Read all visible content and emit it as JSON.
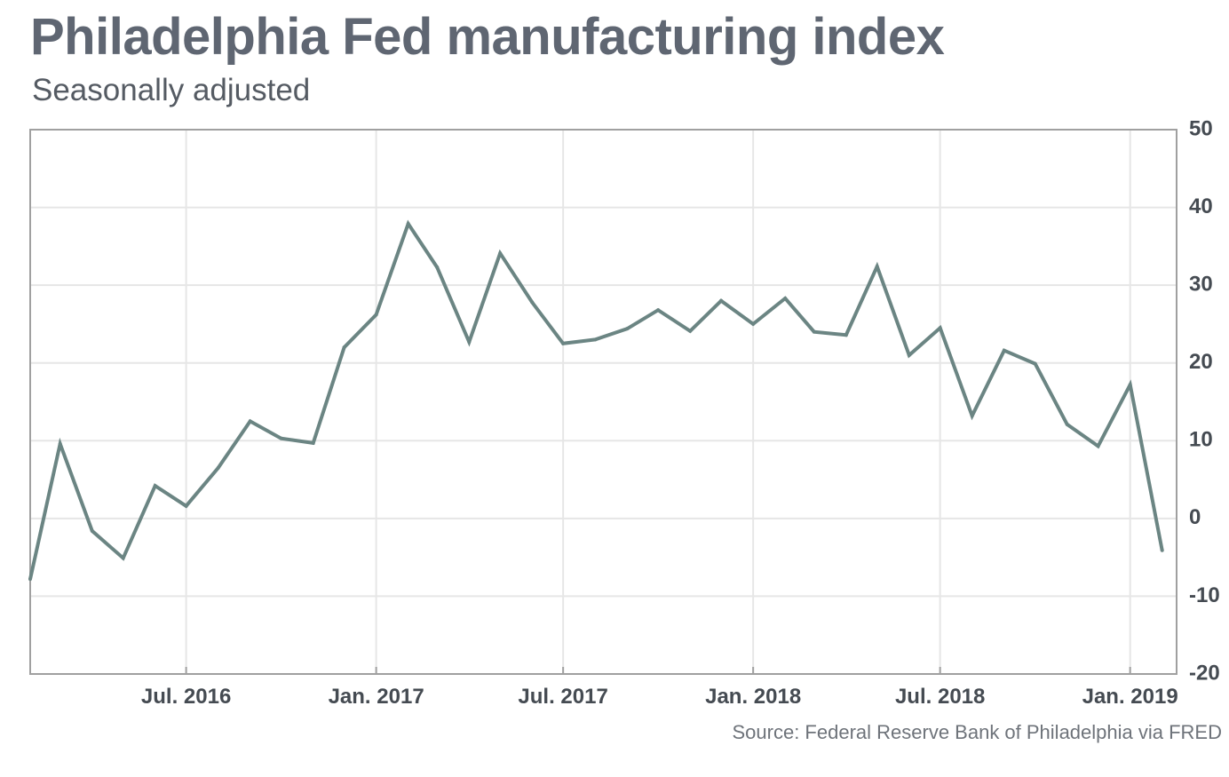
{
  "header": {
    "title": "Philadelphia Fed manufacturing index",
    "subtitle": "Seasonally adjusted"
  },
  "footer": {
    "source": "Source: Federal Reserve Bank of Philadelphia via FRED"
  },
  "colors": {
    "line": "#6b8583",
    "grid": "#e6e6e6",
    "frame": "#a0a0a0"
  },
  "chart_data": {
    "type": "line",
    "title": "Philadelphia Fed manufacturing index",
    "subtitle": "Seasonally adjusted",
    "xlabel": "",
    "ylabel": "",
    "ylim": [
      -20,
      50
    ],
    "xlim": [
      "2016-02-01",
      "2019-02-15"
    ],
    "y_ticks": [
      50,
      40,
      30,
      20,
      10,
      0,
      -10,
      -20
    ],
    "y_axis_position": "right",
    "x_ticks": [
      {
        "date": "2016-07-01",
        "label": "Jul. 2016"
      },
      {
        "date": "2017-01-01",
        "label": "Jan. 2017"
      },
      {
        "date": "2017-07-01",
        "label": "Jul. 2017"
      },
      {
        "date": "2018-01-01",
        "label": "Jan. 2018"
      },
      {
        "date": "2018-07-01",
        "label": "Jul. 2018"
      },
      {
        "date": "2019-01-01",
        "label": "Jan. 2019"
      }
    ],
    "grid": true,
    "legend": "none",
    "series": [
      {
        "x": [
          "2016-02-01",
          "2016-03-01",
          "2016-04-01",
          "2016-05-01",
          "2016-06-01",
          "2016-07-01",
          "2016-08-01",
          "2016-09-01",
          "2016-10-01",
          "2016-11-01",
          "2016-12-01",
          "2017-01-01",
          "2017-02-01",
          "2017-03-01",
          "2017-04-01",
          "2017-05-01",
          "2017-06-01",
          "2017-07-01",
          "2017-08-01",
          "2017-09-01",
          "2017-10-01",
          "2017-11-01",
          "2017-12-01",
          "2018-01-01",
          "2018-02-01",
          "2018-03-01",
          "2018-04-01",
          "2018-05-01",
          "2018-06-01",
          "2018-07-01",
          "2018-08-01",
          "2018-09-01",
          "2018-10-01",
          "2018-11-01",
          "2018-12-01",
          "2019-01-01",
          "2019-02-01"
        ],
        "values": [
          -7.8,
          9.6,
          -1.6,
          -5.1,
          4.2,
          1.6,
          6.5,
          12.5,
          10.3,
          9.7,
          22.0,
          26.2,
          37.9,
          32.3,
          22.7,
          34.1,
          27.8,
          22.5,
          23.0,
          24.4,
          26.8,
          24.1,
          28.0,
          25.0,
          28.3,
          24.0,
          23.6,
          32.4,
          21.0,
          24.5,
          13.2,
          21.6,
          19.9,
          12.1,
          9.3,
          17.2,
          -4.1
        ]
      }
    ]
  }
}
